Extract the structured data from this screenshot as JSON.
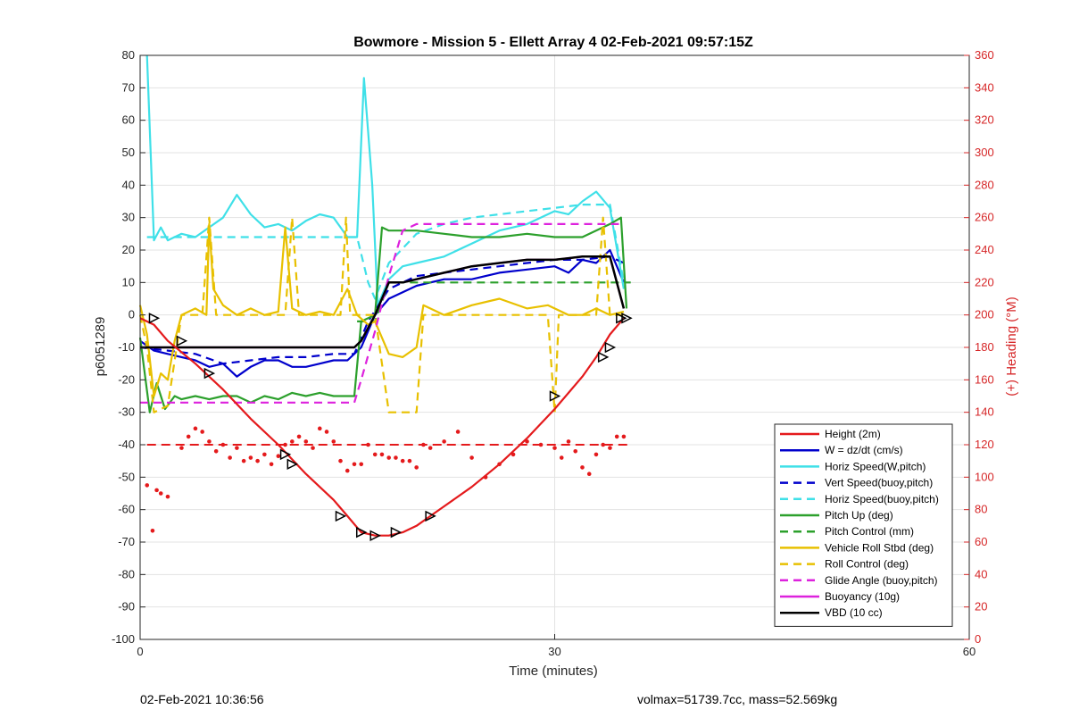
{
  "chart_data": {
    "type": "line",
    "title": "Bowmore - Mission 5 - Ellett Array 4 02-Feb-2021 09:57:15Z",
    "xlabel": "Time (minutes)",
    "ylabel": "p6051289",
    "ylabel_right": "(+) Heading (°M)",
    "xlim": [
      0,
      60
    ],
    "ylim": [
      -100,
      80
    ],
    "ylim_right": [
      0,
      360
    ],
    "x_ticks": [
      0,
      30,
      60
    ],
    "y_ticks": [
      -100,
      -90,
      -80,
      -70,
      -60,
      -50,
      -40,
      -30,
      -20,
      -10,
      0,
      10,
      20,
      30,
      40,
      50,
      60,
      70,
      80
    ],
    "y_ticks_right": [
      0,
      20,
      40,
      60,
      80,
      100,
      120,
      140,
      160,
      180,
      200,
      220,
      240,
      260,
      280,
      300,
      320,
      340,
      360
    ],
    "grid": true,
    "legend_position": "bottom-right",
    "series": [
      {
        "name": "Height (2m)",
        "color": "#e41a1c",
        "style": "solid",
        "x": [
          0,
          1,
          2,
          4,
          6,
          8,
          10,
          12,
          14,
          15,
          16,
          17,
          18,
          19,
          20,
          21,
          22,
          24,
          26,
          28,
          30,
          31,
          32,
          33,
          34,
          35
        ],
        "y": [
          -1,
          -3,
          -8,
          -15,
          -23,
          -32,
          -40,
          -49,
          -57,
          -62,
          -67,
          -68,
          -68,
          -67,
          -65,
          -62,
          -59,
          -53,
          -46,
          -38,
          -29,
          -24,
          -19,
          -13,
          -6,
          -1
        ]
      },
      {
        "name": "W = dz/dt (cm/s)",
        "color": "#0000cc",
        "style": "solid",
        "x": [
          0,
          1,
          2,
          3,
          4,
          5,
          6,
          7,
          8,
          9,
          10,
          11,
          12,
          13,
          14,
          15,
          16,
          17,
          18,
          19,
          20,
          22,
          24,
          26,
          28,
          30,
          31,
          32,
          33,
          34,
          35
        ],
        "y": [
          -8,
          -11,
          -12,
          -13,
          -14,
          -16,
          -15,
          -19,
          -16,
          -14,
          -14,
          -16,
          -16,
          -15,
          -14,
          -14,
          -10,
          0,
          5,
          7,
          9,
          11,
          11,
          13,
          14,
          15,
          13,
          17,
          16,
          20,
          10
        ]
      },
      {
        "name": "Horiz Speed(W,pitch)",
        "color": "#3fe0e8",
        "style": "solid",
        "x": [
          0.5,
          1,
          1.5,
          2,
          3,
          4,
          5,
          6,
          7,
          8,
          9,
          10,
          11,
          12,
          13,
          14,
          15,
          15.7,
          16.2,
          16.8,
          17.2,
          18,
          19,
          20,
          22,
          24,
          26,
          28,
          30,
          31,
          32,
          33,
          34,
          35
        ],
        "y": [
          80,
          23,
          27,
          23,
          25,
          24,
          27,
          30,
          37,
          31,
          27,
          28,
          26,
          29,
          31,
          30,
          24,
          24,
          73,
          40,
          3,
          11,
          15,
          16,
          18,
          22,
          26,
          28,
          32,
          31,
          35,
          38,
          33,
          8
        ]
      },
      {
        "name": "Vert Speed(buoy,pitch)",
        "color": "#0000cc",
        "style": "dashed",
        "x": [
          0,
          2,
          4,
          6,
          8,
          10,
          12,
          14,
          15.5,
          16.5,
          18,
          20,
          22,
          24,
          26,
          28,
          30,
          32,
          34,
          35
        ],
        "y": [
          -10,
          -11,
          -12,
          -15,
          -14,
          -13,
          -13,
          -12,
          -12,
          -2,
          8,
          12,
          13,
          14,
          15,
          16,
          17,
          17,
          18,
          16
        ]
      },
      {
        "name": "Horiz Speed(buoy,pitch)",
        "color": "#3fe0e8",
        "style": "dashed",
        "x": [
          0.5,
          2,
          4,
          6,
          8,
          10,
          12,
          14,
          15.7,
          16.5,
          17,
          18,
          20,
          22,
          24,
          26,
          28,
          30,
          32,
          34,
          35
        ],
        "y": [
          24,
          24,
          24,
          24,
          24,
          24,
          24,
          24,
          24,
          10,
          5,
          16,
          25,
          28,
          30,
          31,
          32,
          33,
          34,
          34,
          10
        ]
      },
      {
        "name": "Pitch Up (deg)",
        "color": "#2ca02c",
        "style": "solid",
        "x": [
          0,
          0.7,
          1.2,
          1.8,
          2.5,
          3,
          4,
          5,
          6,
          7,
          8,
          9,
          10,
          11,
          12,
          13,
          14,
          15.5,
          16,
          17,
          17.5,
          18,
          20,
          22,
          24,
          26,
          28,
          30,
          32,
          34,
          34.8,
          35.2
        ],
        "y": [
          -7,
          -30,
          -21,
          -29,
          -25,
          -26,
          -25,
          -26,
          -25,
          -25,
          -27,
          -25,
          -26,
          -24,
          -25,
          -24,
          -25,
          -25,
          -2,
          0,
          27,
          26,
          26,
          25,
          24,
          24,
          25,
          24,
          24,
          28,
          30,
          2
        ]
      },
      {
        "name": "Pitch Control (mm)",
        "color": "#2ca02c",
        "style": "dashed",
        "x": [
          15.7,
          17,
          18,
          35.5
        ],
        "y": [
          -2,
          -2,
          10,
          10
        ]
      },
      {
        "name": "Vehicle Roll Stbd (deg)",
        "color": "#e8c000",
        "style": "solid",
        "x": [
          0,
          0.5,
          1,
          1.5,
          2,
          2.5,
          3,
          4,
          4.8,
          5,
          5.3,
          6,
          7,
          8,
          9,
          10,
          10.5,
          11,
          12,
          13,
          14,
          15,
          15.7,
          16.5,
          17,
          18,
          19,
          20,
          20.5,
          21,
          22,
          24,
          26,
          28,
          29.5,
          31,
          32,
          33,
          34,
          35
        ],
        "y": [
          3,
          -6,
          -25,
          -18,
          -20,
          -8,
          0,
          2,
          0,
          28,
          8,
          3,
          0,
          2,
          0,
          1,
          27,
          2,
          0,
          1,
          0,
          8,
          0,
          -3,
          -2,
          -12,
          -13,
          -10,
          3,
          2,
          0,
          3,
          5,
          2,
          3,
          0,
          0,
          2,
          0,
          1
        ]
      },
      {
        "name": "Roll Control (deg)",
        "color": "#e8c000",
        "style": "dashed",
        "x": [
          0,
          0.5,
          1,
          2,
          3,
          4.5,
          5,
          5.5,
          6,
          10.5,
          11,
          11.5,
          12,
          14.5,
          14.9,
          15.2,
          16,
          17,
          18,
          20,
          20.5,
          21,
          22,
          29.5,
          30,
          30.3,
          31,
          33,
          33.5,
          34,
          35
        ],
        "y": [
          0,
          -10,
          -30,
          -28,
          0,
          0,
          30,
          0,
          0,
          0,
          30,
          0,
          0,
          0,
          30,
          0,
          0,
          0,
          -30,
          -30,
          0,
          0,
          0,
          0,
          -30,
          0,
          0,
          0,
          30,
          0,
          0
        ]
      },
      {
        "name": "Glide Angle (buoy,pitch)",
        "color": "#dd22dd",
        "style": "dashed",
        "x": [
          0,
          1,
          2,
          4,
          6,
          8,
          10,
          12,
          14,
          15.5,
          16,
          17,
          18,
          19,
          20,
          22,
          24,
          26,
          28,
          30,
          32,
          34,
          35
        ],
        "y": [
          -27,
          -27,
          -27,
          -27,
          -27,
          -27,
          -27,
          -27,
          -27,
          -27,
          -20,
          -5,
          12,
          26,
          28,
          28,
          28,
          28,
          28,
          28,
          28,
          28,
          28
        ]
      },
      {
        "name": "Buoyancy (10g)",
        "color": "#dd22dd",
        "style": "solid",
        "x": [
          0,
          15.5,
          16,
          17,
          18,
          19,
          20,
          22,
          24,
          26,
          28,
          30,
          32,
          34,
          35
        ],
        "y": [
          -10,
          -10,
          -8,
          0,
          10,
          10,
          11,
          13,
          15,
          16,
          17,
          17,
          18,
          18,
          2
        ]
      },
      {
        "name": "VBD (10 cc)",
        "color": "#000000",
        "style": "solid",
        "x": [
          0,
          15.5,
          16,
          17,
          18,
          19,
          20,
          22,
          24,
          26,
          28,
          30,
          32,
          34,
          35
        ],
        "y": [
          -10,
          -10,
          -8,
          0,
          10,
          10,
          11,
          13,
          15,
          16,
          17,
          17,
          18,
          18,
          2
        ]
      }
    ],
    "heading_dots": {
      "color": "#e41a1c",
      "x": [
        0.5,
        0.9,
        1.2,
        1.5,
        2,
        3,
        3.5,
        4,
        4.5,
        5,
        5.5,
        6,
        6.5,
        7,
        7.5,
        8,
        8.5,
        9,
        9.5,
        10,
        10.5,
        11,
        11.5,
        12,
        12.5,
        13,
        13.5,
        14,
        14.5,
        15,
        15.5,
        16,
        16.5,
        17,
        17.5,
        18,
        18.5,
        19,
        19.5,
        20,
        20.5,
        21,
        22,
        23,
        24,
        25,
        26,
        27,
        28,
        29,
        30,
        30.5,
        31,
        31.5,
        32,
        32.5,
        33,
        33.5,
        34,
        34.5,
        35
      ],
      "y": [
        95,
        67,
        92,
        90,
        88,
        118,
        125,
        130,
        128,
        122,
        116,
        120,
        112,
        118,
        110,
        112,
        110,
        114,
        108,
        113,
        120,
        122,
        125,
        122,
        118,
        130,
        128,
        122,
        110,
        104,
        108,
        108,
        120,
        114,
        114,
        112,
        112,
        110,
        110,
        106,
        120,
        118,
        122,
        128,
        112,
        100,
        108,
        114,
        122,
        120,
        118,
        112,
        122,
        116,
        106,
        102,
        114,
        120,
        118,
        125,
        125
      ]
    },
    "heading_mean": {
      "value": 120,
      "color": "#e41a1c",
      "style": "dashed"
    },
    "markers": {
      "x": [
        1,
        3,
        5,
        10.5,
        11,
        14.5,
        16,
        17,
        18.5,
        21,
        30,
        33.5,
        34,
        34.8,
        35.2
      ],
      "y": [
        -1,
        -8,
        -18,
        -43,
        -46,
        -62,
        -67,
        -68,
        -67,
        -62,
        -25,
        -13,
        -10,
        -1,
        -1
      ]
    }
  },
  "footer": {
    "left": "02-Feb-2021 10:36:56",
    "right": "volmax=51739.7cc, mass=52.569kg"
  }
}
